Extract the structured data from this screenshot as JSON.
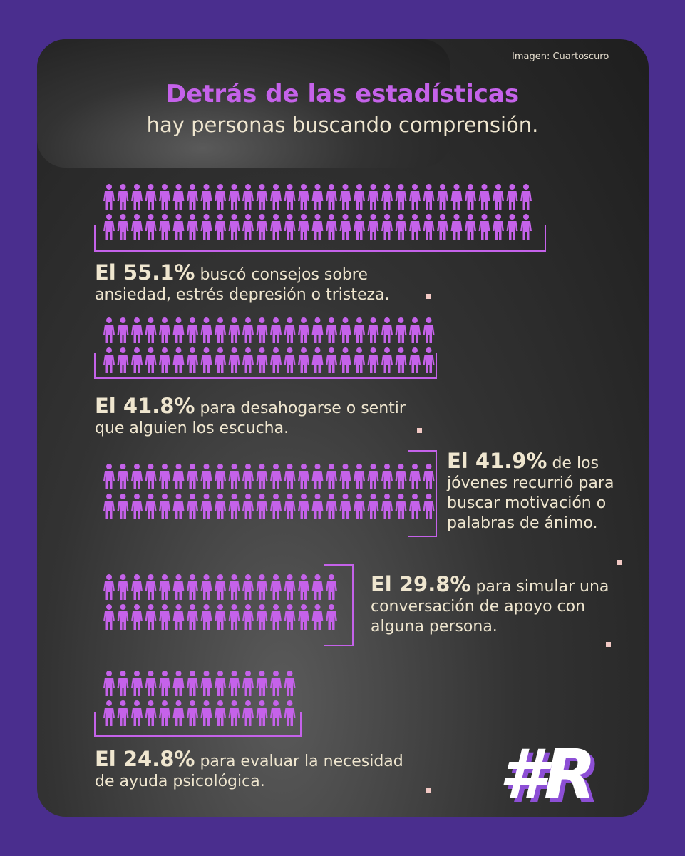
{
  "credit": "Imagen: Cuartoscuro",
  "title": "Detrás de las estadísticas",
  "subtitle": "hay personas buscando comprensión.",
  "stats": [
    {
      "lead": "El 55.1%",
      "text": "buscó consejos sobre ansiedad, estrés depresión o tristeza."
    },
    {
      "lead": "El 41.8%",
      "text": "para desahogarse o sentir que alguien los escucha."
    },
    {
      "lead": "El 41.9%",
      "text": "de los jóvenes recurrió para buscar motivación o palabras de ánimo."
    },
    {
      "lead": "El 29.8%",
      "text": "para simular una conversación de apoyo con alguna persona."
    },
    {
      "lead": "El 24.8%",
      "text": "para evaluar la necesidad de ayuda psicológica."
    }
  ],
  "logo": "#R"
}
